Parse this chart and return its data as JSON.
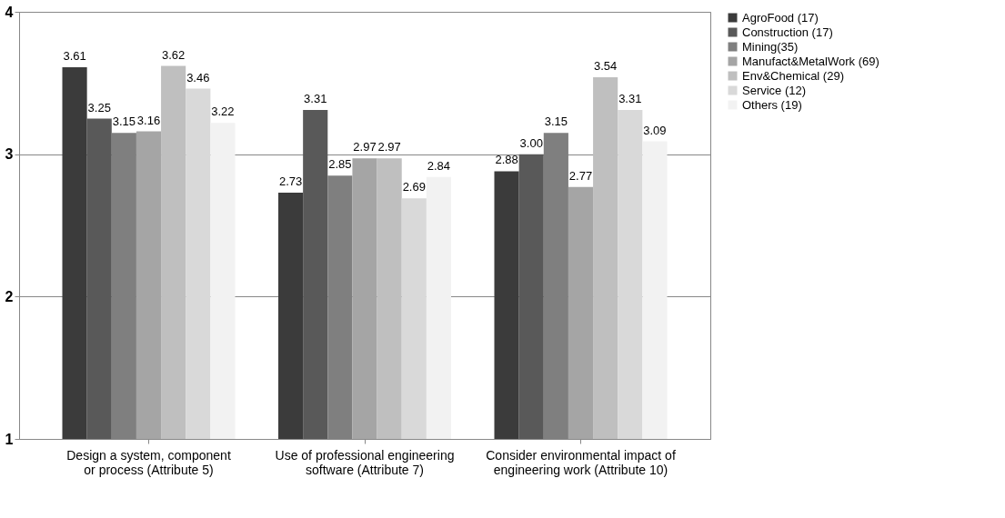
{
  "chart_data": {
    "type": "bar",
    "categories": [
      "Design a system, component or process (Attribute 5)",
      "Use of professional engineering software (Attribute 7)",
      "Consider environmental impact of engineering work (Attribute 10)"
    ],
    "series": [
      {
        "name": "AgroFood (17)",
        "color": "#3b3b3b",
        "values": [
          3.61,
          2.73,
          2.88
        ],
        "value_labels": [
          "3.61",
          "2.73",
          "2.88"
        ]
      },
      {
        "name": "Construction (17)",
        "color": "#595959",
        "values": [
          3.25,
          3.31,
          3.0
        ],
        "value_labels": [
          "3.25",
          "3.31",
          "3.00"
        ]
      },
      {
        "name": "Mining(35)",
        "color": "#7f7f7f",
        "values": [
          3.15,
          2.85,
          3.15
        ],
        "value_labels": [
          "3.15",
          "2.85",
          "3.15"
        ]
      },
      {
        "name": "Manufact&MetalWork (69)",
        "color": "#a5a5a5",
        "values": [
          3.16,
          2.97,
          2.77
        ],
        "value_labels": [
          "3.16",
          "2.97",
          "2.77"
        ]
      },
      {
        "name": "Env&Chemical (29)",
        "color": "#bfbfbf",
        "values": [
          3.62,
          2.97,
          3.54
        ],
        "value_labels": [
          "3.62",
          "2.97",
          "3.54"
        ]
      },
      {
        "name": "Service (12)",
        "color": "#d9d9d9",
        "values": [
          3.46,
          2.69,
          3.31
        ],
        "value_labels": [
          "3.46",
          "2.69",
          "3.31"
        ]
      },
      {
        "name": "Others (19)",
        "color": "#f2f2f2",
        "values": [
          3.22,
          2.84,
          3.09
        ],
        "value_labels": [
          "3.22",
          "2.84",
          "3.09"
        ]
      }
    ],
    "ylim": [
      1,
      4
    ],
    "yticks": [
      1,
      2,
      3,
      4
    ],
    "grid": "y",
    "legend": "right"
  }
}
